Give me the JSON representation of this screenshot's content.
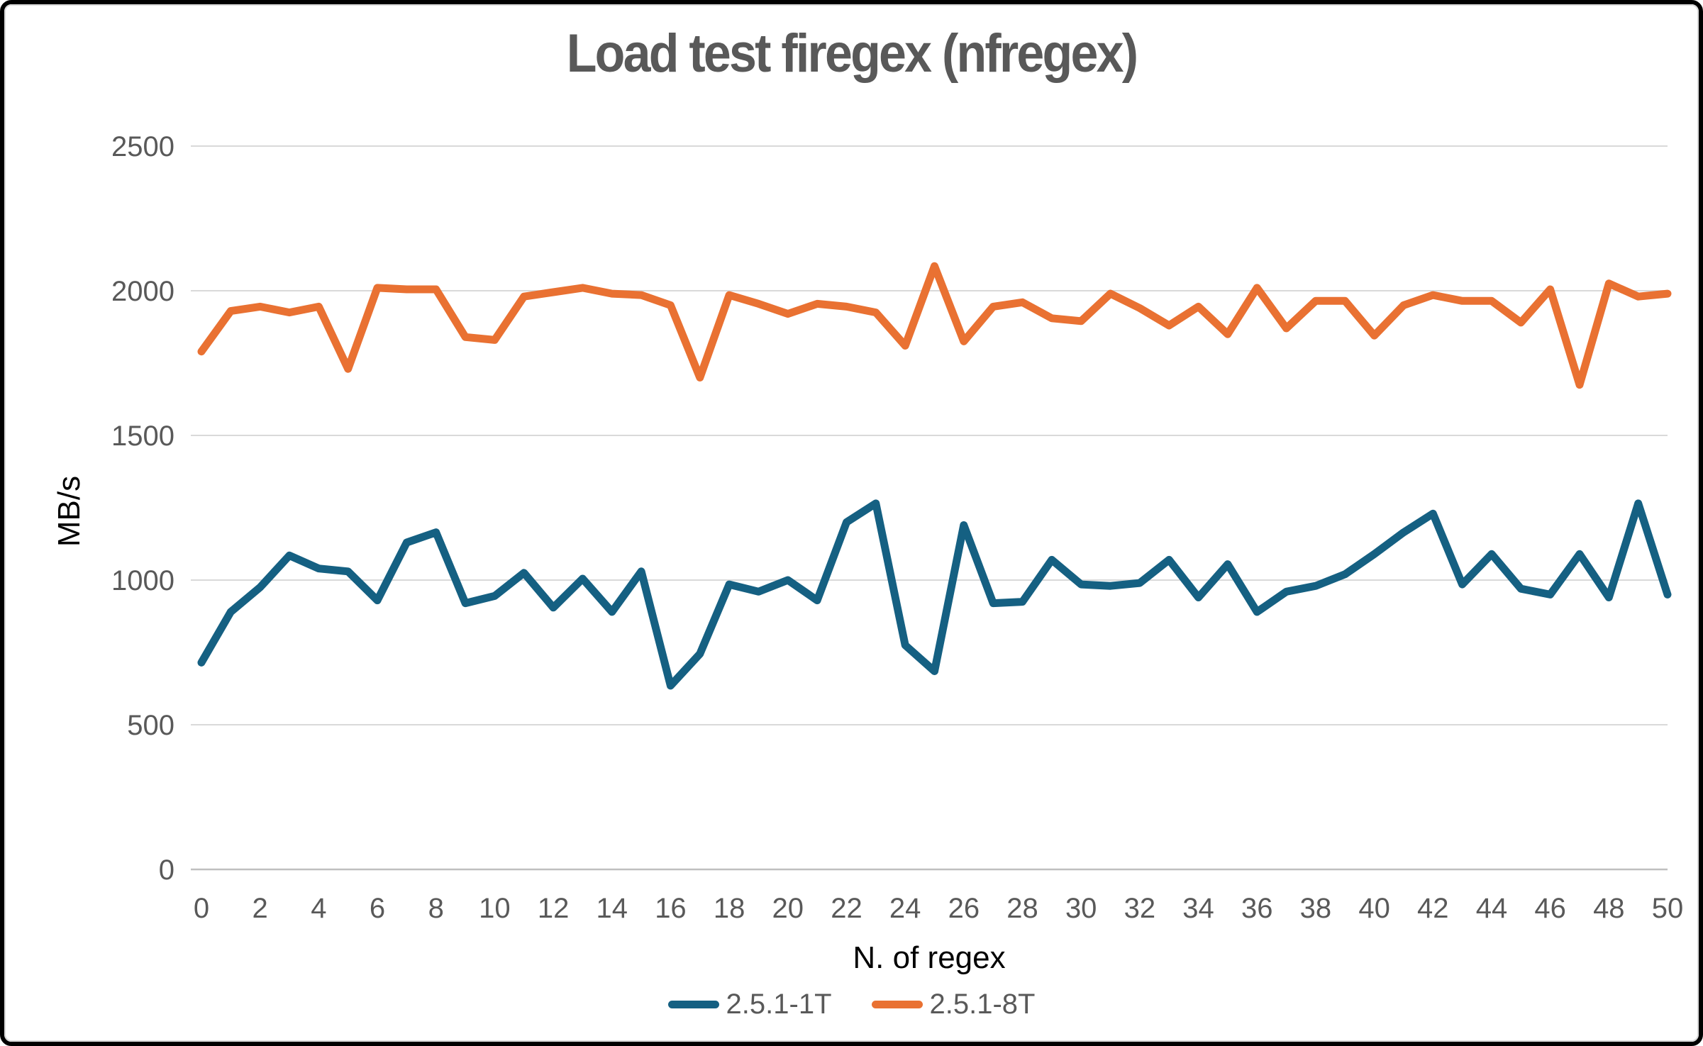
{
  "title": "Load test firegex (nfregex)",
  "colors": {
    "series1": "#156082",
    "series2": "#E97132",
    "gridline": "#d9d9d9",
    "axis_line": "#bfbfbf",
    "tick_label": "#595959",
    "title_text": "#595959",
    "axis_title_text": "#000000",
    "background": "#ffffff",
    "outer_border": "#000000"
  },
  "chart_data": {
    "type": "line",
    "title": "Load test firegex (nfregex)",
    "xlabel": "N. of regex",
    "ylabel": "MB/s",
    "x": [
      0,
      1,
      2,
      3,
      4,
      5,
      6,
      7,
      8,
      9,
      10,
      11,
      12,
      13,
      14,
      15,
      16,
      17,
      18,
      19,
      20,
      21,
      22,
      23,
      24,
      25,
      26,
      27,
      28,
      29,
      30,
      31,
      32,
      33,
      34,
      35,
      36,
      37,
      38,
      39,
      40,
      41,
      42,
      43,
      44,
      45,
      46,
      47,
      48,
      49,
      50
    ],
    "x_tick_step": 2,
    "ylim": [
      0,
      2500
    ],
    "ytick_interval": 500,
    "grid": "horizontal",
    "legend_position": "bottom",
    "series": [
      {
        "name": "2.5.1-1T",
        "color": "#156082",
        "values": [
          715,
          890,
          975,
          1085,
          1040,
          1030,
          930,
          1130,
          1165,
          920,
          945,
          1025,
          905,
          1005,
          890,
          1030,
          635,
          745,
          985,
          960,
          1000,
          930,
          1200,
          1265,
          775,
          685,
          1190,
          920,
          925,
          1070,
          985,
          980,
          990,
          1070,
          940,
          1055,
          890,
          960,
          980,
          1020,
          1090,
          1165,
          1230,
          985,
          1090,
          970,
          950,
          1090,
          940,
          1265,
          950
        ]
      },
      {
        "name": "2.5.1-8T",
        "color": "#E97132",
        "values": [
          1790,
          1930,
          1945,
          1925,
          1945,
          1730,
          2010,
          2005,
          2005,
          1840,
          1830,
          1980,
          1995,
          2010,
          1990,
          1985,
          1950,
          1700,
          1985,
          1955,
          1920,
          1955,
          1945,
          1925,
          1810,
          2085,
          1825,
          1945,
          1960,
          1905,
          1895,
          1990,
          1940,
          1880,
          1945,
          1850,
          2010,
          1870,
          1965,
          1965,
          1845,
          1950,
          1985,
          1965,
          1965,
          1890,
          2005,
          1675,
          2025,
          1980,
          1990
        ]
      }
    ]
  }
}
